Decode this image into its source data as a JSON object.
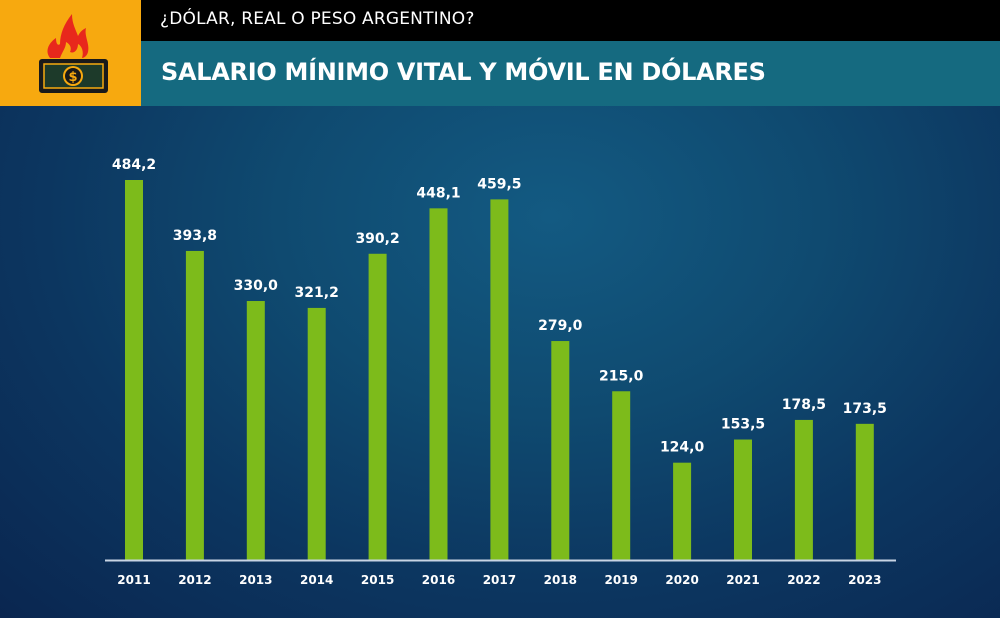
{
  "header": {
    "subtitle": "¿DÓLAR, REAL O PESO ARGENTINO?",
    "title": "SALARIO MÍNIMO VITAL Y MÓVIL EN DÓLARES",
    "logo_icon": "burning-dollar-bill-icon"
  },
  "colors": {
    "bar": "#7dbb1b",
    "logo_bg": "#f7a90f",
    "title_bar": "#156a80",
    "top_bar": "#000000",
    "flame": "#e8281c",
    "axis": "#c8d4e4"
  },
  "chart_data": {
    "type": "bar",
    "title": "SALARIO MÍNIMO VITAL Y MÓVIL EN DÓLARES",
    "xlabel": "",
    "ylabel": "",
    "categories": [
      "2011",
      "2012",
      "2013",
      "2014",
      "2015",
      "2016",
      "2017",
      "2018",
      "2019",
      "2020",
      "2021",
      "2022",
      "2023"
    ],
    "values": [
      484.2,
      393.8,
      330.0,
      321.2,
      390.2,
      448.1,
      459.5,
      279.0,
      215.0,
      124.0,
      153.5,
      178.5,
      173.5
    ],
    "value_labels": [
      "484,2",
      "393,8",
      "330,0",
      "321,2",
      "390,2",
      "448,1",
      "459,5",
      "279,0",
      "215,0",
      "124,0",
      "153,5",
      "178,5",
      "173,5"
    ],
    "ylim": [
      0,
      500
    ],
    "grid": false,
    "legend": "none"
  }
}
